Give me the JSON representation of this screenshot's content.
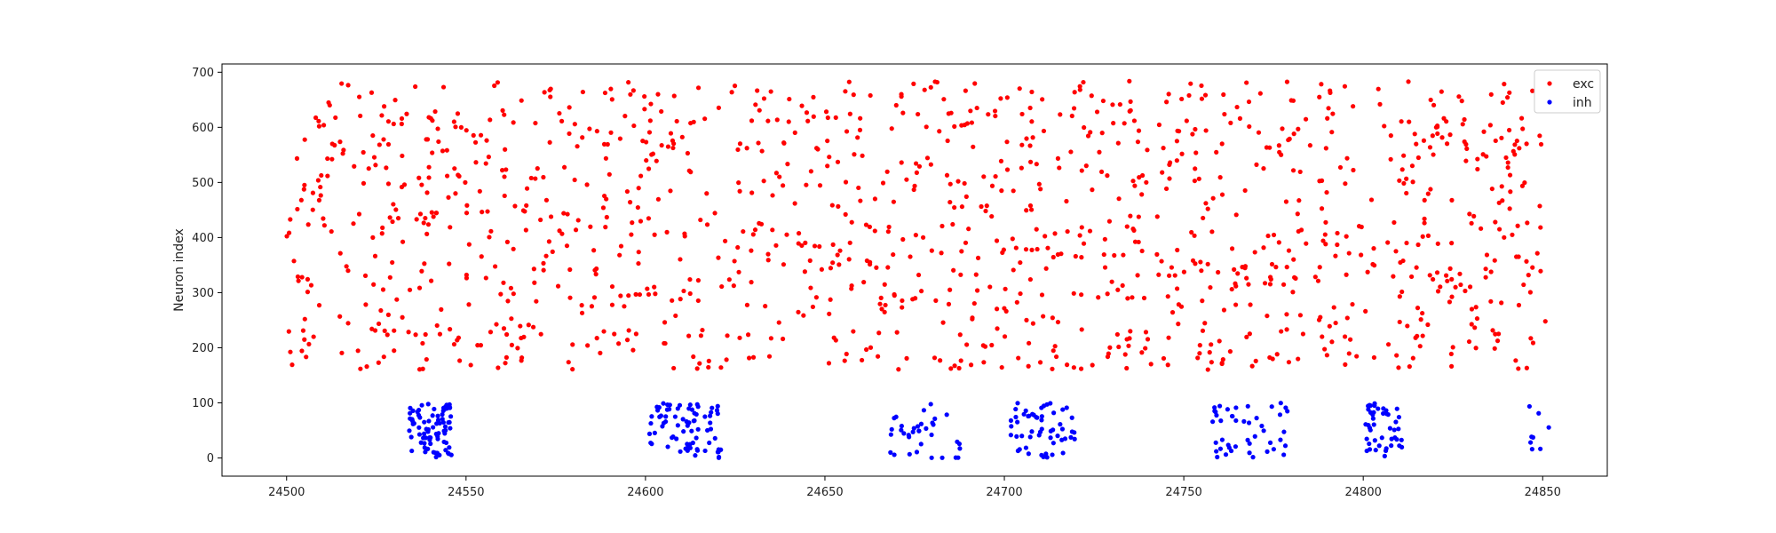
{
  "chart_data": {
    "type": "scatter",
    "title": "",
    "xlabel": "",
    "ylabel": "Neuron index",
    "xlim": [
      24482,
      24868
    ],
    "ylim": [
      -33,
      715
    ],
    "xticks": [
      24500,
      24550,
      24600,
      24650,
      24700,
      24750,
      24800,
      24850
    ],
    "yticks": [
      0,
      100,
      200,
      300,
      400,
      500,
      600,
      700
    ],
    "grid": false,
    "legend": {
      "placement": "top-right"
    },
    "series": [
      {
        "name": "exc",
        "color": "#ff0000",
        "x_range": [
          24500,
          24851
        ],
        "y_range": [
          160,
          684
        ],
        "count": 1250,
        "bursts": []
      },
      {
        "name": "inh",
        "color": "#0000ff",
        "x_range": [
          24500,
          24852
        ],
        "y_range": [
          0,
          100
        ],
        "count": 300,
        "bursts": [
          {
            "x": [
              24534,
              24546
            ],
            "n": 80
          },
          {
            "x": [
              24601,
              24621
            ],
            "n": 75
          },
          {
            "x": [
              24668,
              24688
            ],
            "n": 35
          },
          {
            "x": [
              24700,
              24720
            ],
            "n": 55
          },
          {
            "x": [
              24758,
              24780
            ],
            "n": 45
          },
          {
            "x": [
              24800,
              24811
            ],
            "n": 45
          },
          {
            "x": [
              24846,
              24852
            ],
            "n": 8
          }
        ]
      }
    ]
  }
}
